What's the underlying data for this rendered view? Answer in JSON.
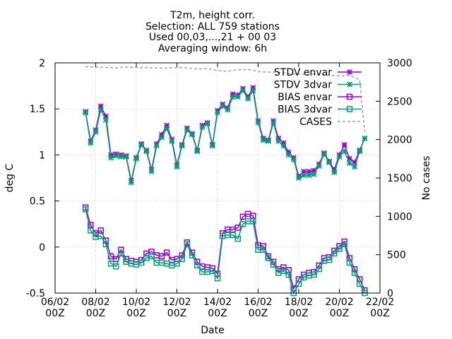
{
  "chart_data": {
    "type": "line",
    "title_lines": [
      "T2m, height corr.",
      "Selection: ALL     759 stations",
      "Used 00,03,...,21 + 00 03",
      "Averaging window:  6h"
    ],
    "xlabel": "Date",
    "ylabel": "deg C",
    "y2label": "No cases",
    "x_range_days": [
      6,
      22
    ],
    "ylim": [
      -0.5,
      2
    ],
    "y2lim": [
      0,
      3000
    ],
    "x_tick_labels": [
      {
        "day": 6,
        "date": "06/02",
        "time": "00Z"
      },
      {
        "day": 8,
        "date": "08/02",
        "time": "00Z"
      },
      {
        "day": 10,
        "date": "10/02",
        "time": "00Z"
      },
      {
        "day": 12,
        "date": "12/02",
        "time": "00Z"
      },
      {
        "day": 14,
        "date": "14/02",
        "time": "00Z"
      },
      {
        "day": 16,
        "date": "16/02",
        "time": "00Z"
      },
      {
        "day": 18,
        "date": "18/02",
        "time": "00Z"
      },
      {
        "day": 20,
        "date": "20/02",
        "time": "00Z"
      },
      {
        "day": 22,
        "date": "22/02",
        "time": "00Z"
      }
    ],
    "y_ticks": [
      "-0.5",
      "0",
      "0.5",
      "1",
      "1.5",
      "2"
    ],
    "y2_ticks": [
      "0",
      "500",
      "1000",
      "1500",
      "2000",
      "2500",
      "3000"
    ],
    "legend_position": "top-right",
    "colors": {
      "envar": "#9400d3",
      "3dvar": "#009e73",
      "cases": "#a0a0a0"
    },
    "x_days": [
      7.5,
      7.75,
      8.0,
      8.25,
      8.5,
      8.75,
      9.0,
      9.25,
      9.5,
      9.75,
      10.0,
      10.25,
      10.5,
      10.75,
      11.0,
      11.25,
      11.5,
      11.75,
      12.0,
      12.25,
      12.5,
      12.75,
      13.0,
      13.25,
      13.5,
      13.75,
      14.0,
      14.25,
      14.5,
      14.75,
      15.0,
      15.25,
      15.5,
      15.75,
      16.0,
      16.25,
      16.5,
      16.75,
      17.0,
      17.25,
      17.5,
      17.75,
      18.0,
      18.25,
      18.5,
      18.75,
      19.0,
      19.25,
      19.5,
      19.75,
      20.0,
      20.25,
      20.5,
      20.75,
      21.0,
      21.25
    ],
    "series": [
      {
        "name": "STDV envar",
        "marker": "x",
        "color": "#9400d3",
        "values": [
          1.47,
          1.15,
          1.27,
          1.53,
          1.42,
          1.0,
          1.01,
          1.0,
          0.99,
          0.72,
          0.97,
          1.12,
          1.05,
          0.84,
          1.12,
          1.22,
          1.32,
          1.17,
          0.89,
          1.11,
          1.29,
          1.23,
          1.05,
          1.32,
          1.35,
          1.11,
          1.48,
          1.55,
          1.51,
          1.66,
          1.65,
          1.72,
          1.63,
          1.73,
          1.37,
          1.18,
          1.16,
          1.37,
          1.18,
          1.13,
          1.03,
          0.97,
          0.77,
          0.82,
          0.82,
          0.83,
          0.9,
          1.02,
          0.93,
          0.84,
          1.0,
          1.11,
          0.96,
          0.92,
          1.05,
          1.18
        ]
      },
      {
        "name": "STDV 3dvar",
        "marker": "x",
        "color": "#009e73",
        "values": [
          1.46,
          1.13,
          1.25,
          1.49,
          1.38,
          0.97,
          0.99,
          0.98,
          0.98,
          0.7,
          0.96,
          1.11,
          1.04,
          0.82,
          1.1,
          1.19,
          1.29,
          1.15,
          0.87,
          1.1,
          1.27,
          1.22,
          1.04,
          1.3,
          1.34,
          1.1,
          1.46,
          1.53,
          1.49,
          1.63,
          1.63,
          1.7,
          1.61,
          1.7,
          1.35,
          1.16,
          1.15,
          1.35,
          1.15,
          1.1,
          1.0,
          0.95,
          0.75,
          0.78,
          0.78,
          0.79,
          0.88,
          1.01,
          0.92,
          0.81,
          0.98,
          1.04,
          0.91,
          0.87,
          1.04,
          1.18
        ]
      },
      {
        "name": "BIAS envar",
        "marker": "square",
        "color": "#9400d3",
        "values": [
          0.43,
          0.24,
          0.15,
          0.18,
          0.07,
          -0.1,
          -0.13,
          -0.03,
          -0.13,
          -0.15,
          -0.16,
          -0.14,
          -0.07,
          -0.05,
          -0.09,
          -0.1,
          -0.06,
          -0.14,
          -0.13,
          -0.09,
          0.05,
          -0.06,
          -0.16,
          -0.21,
          -0.22,
          -0.23,
          -0.29,
          0.15,
          0.19,
          0.19,
          0.21,
          0.33,
          0.36,
          0.34,
          0.02,
          0.01,
          -0.1,
          -0.16,
          -0.24,
          -0.22,
          -0.25,
          -0.45,
          -0.35,
          -0.3,
          -0.28,
          -0.27,
          -0.2,
          -0.12,
          -0.11,
          -0.04,
          0.01,
          0.06,
          -0.12,
          -0.24,
          -0.35,
          -0.47
        ]
      },
      {
        "name": "BIAS 3dvar",
        "marker": "square",
        "color": "#009e73",
        "values": [
          0.41,
          0.18,
          0.11,
          0.12,
          0.03,
          -0.18,
          -0.21,
          -0.07,
          -0.16,
          -0.18,
          -0.19,
          -0.17,
          -0.12,
          -0.1,
          -0.17,
          -0.17,
          -0.18,
          -0.2,
          -0.18,
          -0.13,
          0.03,
          -0.09,
          -0.2,
          -0.27,
          -0.27,
          -0.26,
          -0.34,
          0.12,
          0.13,
          0.13,
          0.09,
          0.25,
          0.28,
          0.28,
          -0.03,
          -0.03,
          -0.12,
          -0.19,
          -0.28,
          -0.26,
          -0.3,
          -0.5,
          -0.4,
          -0.33,
          -0.31,
          -0.3,
          -0.24,
          -0.15,
          -0.14,
          -0.07,
          -0.02,
          0.03,
          -0.17,
          -0.28,
          -0.4,
          -0.5
        ]
      }
    ],
    "cases": {
      "name": "CASES",
      "x": [
        7.5,
        8.0,
        8.5,
        9.0,
        9.5,
        10.0,
        10.5,
        11.0,
        11.5,
        12.0,
        12.5,
        13.0,
        13.5,
        14.0,
        14.5,
        15.0,
        15.5,
        16.0,
        16.5,
        17.0,
        17.5,
        18.0,
        18.5,
        19.0,
        19.5,
        20.0,
        20.5,
        21.0,
        21.1,
        21.25
      ],
      "values": [
        2950,
        2945,
        2940,
        2935,
        2945,
        2940,
        2938,
        2935,
        2930,
        2940,
        2935,
        2920,
        2925,
        2900,
        2890,
        2910,
        2915,
        2885,
        2880,
        2875,
        2860,
        2850,
        2855,
        2850,
        2840,
        2830,
        2835,
        2780,
        2500,
        2100
      ]
    }
  }
}
